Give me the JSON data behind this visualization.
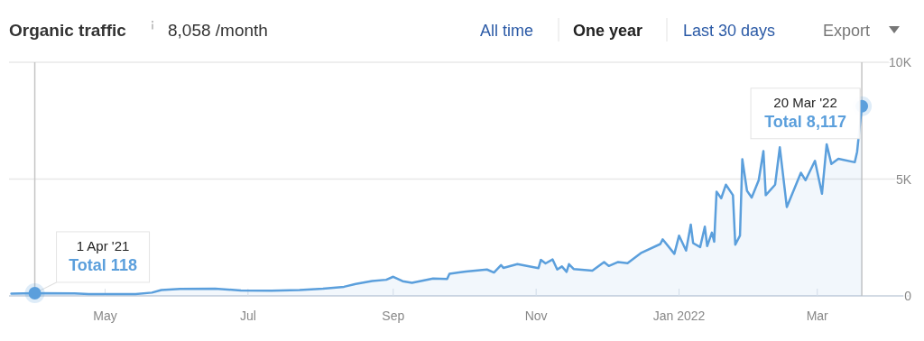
{
  "chart_data": {
    "type": "area",
    "title": "Organic traffic",
    "subtitle": "8,058 /month",
    "annotations": [
      "All time",
      "One year",
      "Last 30 days",
      "Export",
      {
        "text": "1 Apr '21\nTotal 118",
        "x": "2021-04-01",
        "y": 118
      },
      {
        "text": "20 Mar '22\nTotal 8,117",
        "x": "2022-03-20",
        "y": 8117
      }
    ],
    "series": [
      {
        "color": "#5b9fdc",
        "x": [
          "2021-03-22",
          "2021-04-01",
          "2021-04-18",
          "2021-04-24",
          "2021-05-14",
          "2021-05-21",
          "2021-05-25",
          "2021-06-02",
          "2021-06-17",
          "2021-06-28",
          "2021-07-11",
          "2021-07-23",
          "2021-08-02",
          "2021-08-11",
          "2021-08-16",
          "2021-08-23",
          "2021-08-29",
          "2021-09-01",
          "2021-09-05",
          "2021-09-09",
          "2021-09-18",
          "2021-09-24",
          "2021-09-25",
          "2021-09-29",
          "2021-10-02",
          "2021-10-11",
          "2021-10-14",
          "2021-10-17",
          "2021-10-18",
          "2021-10-24",
          "2021-11-02",
          "2021-11-03",
          "2021-11-05",
          "2021-11-08",
          "2021-11-10",
          "2021-11-12",
          "2021-11-14",
          "2021-11-15",
          "2021-11-17",
          "2021-11-25",
          "2021-11-30",
          "2021-12-02",
          "2021-12-06",
          "2021-12-10",
          "2021-12-16",
          "2021-12-24",
          "2021-12-25",
          "2021-12-30",
          "2022-01-01",
          "2022-01-04",
          "2022-01-06",
          "2022-01-07",
          "2022-01-10",
          "2022-01-12",
          "2022-01-13",
          "2022-01-15",
          "2022-01-16",
          "2022-01-17",
          "2022-01-19",
          "2022-01-21",
          "2022-01-24",
          "2022-01-25",
          "2022-01-27",
          "2022-01-28",
          "2022-01-30",
          "2022-02-01",
          "2022-02-04",
          "2022-02-06",
          "2022-02-07",
          "2022-02-11",
          "2022-02-13",
          "2022-02-16",
          "2022-02-18",
          "2022-02-22",
          "2022-02-24",
          "2022-02-26",
          "2022-02-28",
          "2022-03-03",
          "2022-03-05",
          "2022-03-07",
          "2022-03-10",
          "2022-03-11",
          "2022-03-14",
          "2022-03-17",
          "2022-03-18",
          "2022-03-20"
        ],
        "values": [
          100,
          118,
          110,
          80,
          80,
          140,
          250,
          300,
          310,
          230,
          220,
          250,
          310,
          390,
          510,
          640,
          690,
          820,
          630,
          560,
          740,
          720,
          950,
          1000,
          1040,
          1130,
          1000,
          1320,
          1200,
          1360,
          1190,
          1540,
          1390,
          1560,
          1130,
          1260,
          1030,
          1360,
          1150,
          1080,
          1450,
          1280,
          1450,
          1400,
          1850,
          2220,
          2420,
          1800,
          2580,
          1940,
          3050,
          2260,
          2090,
          2960,
          2130,
          2710,
          2320,
          4460,
          4180,
          4760,
          4310,
          2190,
          2580,
          5850,
          4500,
          4210,
          4950,
          6200,
          4310,
          4760,
          6360,
          3800,
          null,
          5270,
          4950,
          null,
          5780,
          4370,
          6490,
          5650,
          5870,
          null,
          null,
          5720,
          6170,
          8117
        ]
      }
    ],
    "xlim": [
      "2021-03-21",
      "2022-04-09"
    ],
    "xticks": [
      {
        "value": "2021-05-01",
        "label": "May"
      },
      {
        "value": "2021-07-01",
        "label": "Jul"
      },
      {
        "value": "2021-09-01",
        "label": "Sep"
      },
      {
        "value": "2021-11-01",
        "label": "Nov"
      },
      {
        "value": "2022-01-01",
        "label": "Jan 2022"
      },
      {
        "value": "2022-03-01",
        "label": "Mar"
      }
    ],
    "ylim": [
      0,
      10000
    ],
    "yticks": [
      {
        "value": 0,
        "label": "0"
      },
      {
        "value": 5000,
        "label": "5K"
      },
      {
        "value": 10000,
        "label": "10K"
      }
    ],
    "grid": "y",
    "ref_lines": [
      {
        "axis": "x",
        "value": "2021-04-01",
        "color": "#c4c4c4"
      },
      {
        "axis": "x",
        "value": "2022-03-20",
        "color": "#c4c4c4"
      }
    ]
  }
}
